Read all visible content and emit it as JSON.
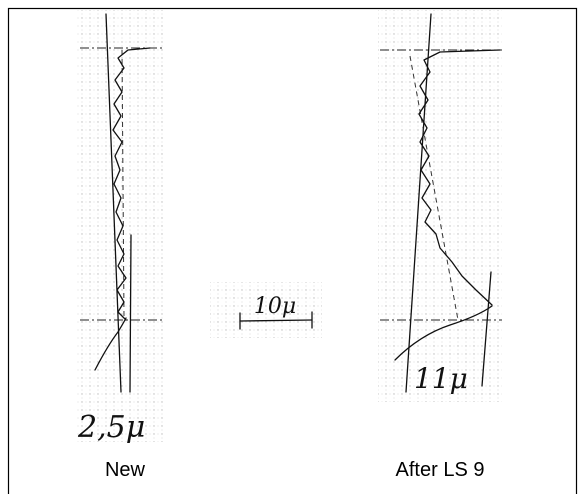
{
  "panels": [
    {
      "label": "New",
      "measurement": "2,5μ"
    },
    {
      "label": "After LS 9",
      "measurement": "11μ"
    }
  ],
  "scale": {
    "label": "10μ"
  }
}
